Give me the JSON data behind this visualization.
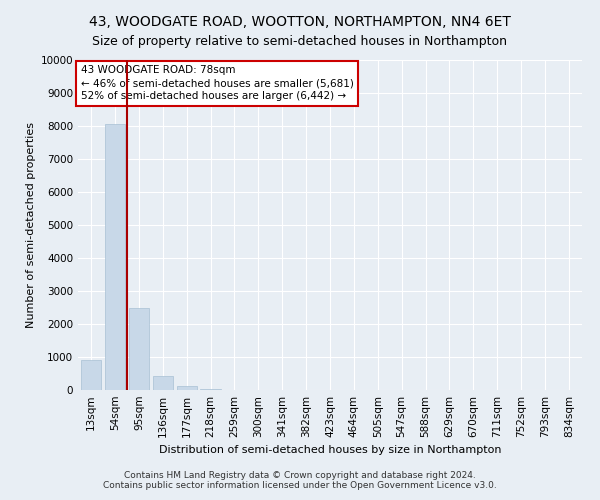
{
  "title": "43, WOODGATE ROAD, WOOTTON, NORTHAMPTON, NN4 6ET",
  "subtitle": "Size of property relative to semi-detached houses in Northampton",
  "xlabel": "Distribution of semi-detached houses by size in Northampton",
  "ylabel": "Number of semi-detached properties",
  "footnote1": "Contains HM Land Registry data © Crown copyright and database right 2024.",
  "footnote2": "Contains public sector information licensed under the Open Government Licence v3.0.",
  "categories": [
    "13sqm",
    "54sqm",
    "95sqm",
    "136sqm",
    "177sqm",
    "218sqm",
    "259sqm",
    "300sqm",
    "341sqm",
    "382sqm",
    "423sqm",
    "464sqm",
    "505sqm",
    "547sqm",
    "588sqm",
    "629sqm",
    "670sqm",
    "711sqm",
    "752sqm",
    "793sqm",
    "834sqm"
  ],
  "values": [
    900,
    8050,
    2500,
    430,
    110,
    45,
    15,
    8,
    4,
    2,
    1,
    1,
    0,
    0,
    0,
    0,
    0,
    0,
    0,
    0,
    0
  ],
  "bar_color": "#c8d8e8",
  "bar_edge_color": "#a8c0d4",
  "property_line_x": 1.5,
  "property_label": "43 WOODGATE ROAD: 78sqm",
  "annotation_line1": "← 46% of semi-detached houses are smaller (5,681)",
  "annotation_line2": "52% of semi-detached houses are larger (6,442) →",
  "annotation_box_color": "#cc0000",
  "ylim": [
    0,
    10000
  ],
  "yticks": [
    0,
    1000,
    2000,
    3000,
    4000,
    5000,
    6000,
    7000,
    8000,
    9000,
    10000
  ],
  "background_color": "#e8eef4",
  "grid_color": "#ffffff",
  "title_fontsize": 10,
  "subtitle_fontsize": 9,
  "axis_label_fontsize": 8,
  "tick_fontsize": 7.5
}
